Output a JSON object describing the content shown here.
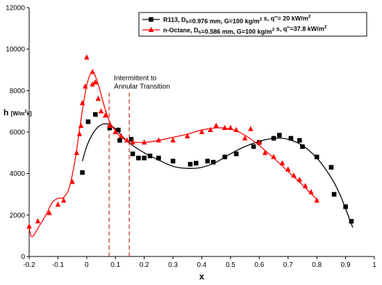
{
  "chart_data": {
    "type": "scatter",
    "xlabel": "x",
    "ylabel": {
      "main": "h",
      "unit_parts": [
        "[W/m",
        "2",
        "k]"
      ]
    },
    "xlim": [
      -0.2,
      1.0
    ],
    "ylim": [
      0,
      12000
    ],
    "xticks": [
      -0.2,
      -0.1,
      0,
      0.1,
      0.2,
      0.3,
      0.4,
      0.5,
      0.6,
      0.7,
      0.8,
      0.9,
      1
    ],
    "xtick_labels": [
      "-0.2",
      "-0.1",
      "0",
      "0.1",
      "0.2",
      "0.3",
      "0.4",
      "0.5",
      "0.6",
      "0.7",
      "0.8",
      "0.9",
      "1"
    ],
    "yticks": [
      0,
      2000,
      4000,
      6000,
      8000,
      10000,
      12000
    ],
    "ytick_labels": [
      "0",
      "2000",
      "4000",
      "6000",
      "8000",
      "10000",
      "12000"
    ],
    "grid": false,
    "legend": {
      "placement": "top-right"
    },
    "annotation": {
      "lines": [
        "Intermittent to",
        "Annular Transition"
      ],
      "at": {
        "x": 0.095,
        "y": 8500
      }
    },
    "transition_lines_x": [
      0.078,
      0.148
    ],
    "transition_lines_y": [
      0,
      7900
    ],
    "series": [
      {
        "legend_parts": [
          [
            "R113, D",
            false
          ],
          [
            "h",
            true
          ],
          [
            "=0.976 mm, G=100 kg/m",
            false
          ],
          [
            "2",
            true
          ],
          [
            " s, q''= 20 kW/m",
            false
          ],
          [
            "2",
            true
          ]
        ],
        "marker": "square",
        "color": "#000000",
        "points": [
          [
            -0.015,
            4050
          ],
          [
            0.005,
            6500
          ],
          [
            0.03,
            6850
          ],
          [
            0.08,
            6200
          ],
          [
            0.11,
            6100
          ],
          [
            0.115,
            5600
          ],
          [
            0.155,
            5650
          ],
          [
            0.16,
            4950
          ],
          [
            0.18,
            4750
          ],
          [
            0.2,
            4750
          ],
          [
            0.22,
            4850
          ],
          [
            0.25,
            4750
          ],
          [
            0.3,
            4600
          ],
          [
            0.36,
            4450
          ],
          [
            0.38,
            4500
          ],
          [
            0.42,
            4600
          ],
          [
            0.44,
            4550
          ],
          [
            0.48,
            4800
          ],
          [
            0.52,
            4950
          ],
          [
            0.58,
            5300
          ],
          [
            0.6,
            5500
          ],
          [
            0.65,
            5700
          ],
          [
            0.67,
            5850
          ],
          [
            0.71,
            5700
          ],
          [
            0.74,
            5600
          ],
          [
            0.75,
            5300
          ],
          [
            0.8,
            4800
          ],
          [
            0.85,
            4300
          ],
          [
            0.86,
            3000
          ],
          [
            0.9,
            2400
          ],
          [
            0.92,
            1700
          ]
        ],
        "fit_curve": [
          [
            -0.015,
            4600
          ],
          [
            0.0,
            5300
          ],
          [
            0.02,
            5900
          ],
          [
            0.04,
            6250
          ],
          [
            0.06,
            6400
          ],
          [
            0.08,
            6350
          ],
          [
            0.1,
            6150
          ],
          [
            0.12,
            5850
          ],
          [
            0.15,
            5450
          ],
          [
            0.2,
            5000
          ],
          [
            0.25,
            4650
          ],
          [
            0.3,
            4350
          ],
          [
            0.35,
            4250
          ],
          [
            0.4,
            4300
          ],
          [
            0.45,
            4550
          ],
          [
            0.5,
            4950
          ],
          [
            0.55,
            5300
          ],
          [
            0.6,
            5550
          ],
          [
            0.65,
            5700
          ],
          [
            0.7,
            5650
          ],
          [
            0.75,
            5350
          ],
          [
            0.8,
            4750
          ],
          [
            0.85,
            3800
          ],
          [
            0.88,
            3000
          ],
          [
            0.9,
            2300
          ],
          [
            0.915,
            1750
          ],
          [
            0.925,
            1400
          ]
        ]
      },
      {
        "legend_parts": [
          [
            "n-Octane, D",
            false
          ],
          [
            "h",
            true
          ],
          [
            "=0.586 mm, G=100 kg/m",
            false
          ],
          [
            "2",
            true
          ],
          [
            " s, q''=37.8 kW/m",
            false
          ],
          [
            "2",
            true
          ]
        ],
        "marker": "triangle",
        "color": "#ff0000",
        "points": [
          [
            -0.2,
            1450
          ],
          [
            -0.17,
            1700
          ],
          [
            -0.13,
            2100
          ],
          [
            -0.1,
            2500
          ],
          [
            -0.08,
            2700
          ],
          [
            -0.05,
            3600
          ],
          [
            -0.035,
            5000
          ],
          [
            -0.025,
            5900
          ],
          [
            -0.02,
            6300
          ],
          [
            -0.015,
            7400
          ],
          [
            -0.005,
            8200
          ],
          [
            0.0,
            9600
          ],
          [
            0.02,
            8900
          ],
          [
            0.02,
            8300
          ],
          [
            0.03,
            8400
          ],
          [
            0.04,
            7600
          ],
          [
            0.05,
            7000
          ],
          [
            0.065,
            6800
          ],
          [
            0.08,
            6300
          ],
          [
            0.1,
            6000
          ],
          [
            0.12,
            5800
          ],
          [
            0.14,
            5600
          ],
          [
            0.16,
            5500
          ],
          [
            0.2,
            5500
          ],
          [
            0.25,
            5600
          ],
          [
            0.3,
            5600
          ],
          [
            0.35,
            5800
          ],
          [
            0.4,
            6000
          ],
          [
            0.43,
            6100
          ],
          [
            0.45,
            6300
          ],
          [
            0.48,
            6200
          ],
          [
            0.5,
            6200
          ],
          [
            0.52,
            6100
          ],
          [
            0.55,
            5700
          ],
          [
            0.57,
            6150
          ],
          [
            0.6,
            5500
          ],
          [
            0.62,
            5000
          ],
          [
            0.65,
            4800
          ],
          [
            0.68,
            4500
          ],
          [
            0.7,
            4200
          ],
          [
            0.72,
            3900
          ],
          [
            0.74,
            3700
          ],
          [
            0.76,
            3400
          ],
          [
            0.78,
            3100
          ],
          [
            0.8,
            2700
          ]
        ],
        "fit_curve": [
          [
            -0.2,
            1350
          ],
          [
            -0.19,
            950
          ],
          [
            -0.17,
            1350
          ],
          [
            -0.14,
            2050
          ],
          [
            -0.12,
            2600
          ],
          [
            -0.1,
            2800
          ],
          [
            -0.08,
            2850
          ],
          [
            -0.06,
            3350
          ],
          [
            -0.04,
            4700
          ],
          [
            -0.02,
            6600
          ],
          [
            0.0,
            8250
          ],
          [
            0.02,
            8900
          ],
          [
            0.04,
            8300
          ],
          [
            0.06,
            7300
          ],
          [
            0.08,
            6500
          ],
          [
            0.1,
            6050
          ],
          [
            0.12,
            5750
          ],
          [
            0.15,
            5550
          ],
          [
            0.2,
            5500
          ],
          [
            0.25,
            5600
          ],
          [
            0.3,
            5750
          ],
          [
            0.35,
            5900
          ],
          [
            0.4,
            6100
          ],
          [
            0.45,
            6200
          ],
          [
            0.5,
            6150
          ],
          [
            0.55,
            5850
          ],
          [
            0.6,
            5350
          ],
          [
            0.65,
            4750
          ],
          [
            0.7,
            4100
          ],
          [
            0.75,
            3450
          ],
          [
            0.8,
            2750
          ]
        ]
      }
    ]
  }
}
